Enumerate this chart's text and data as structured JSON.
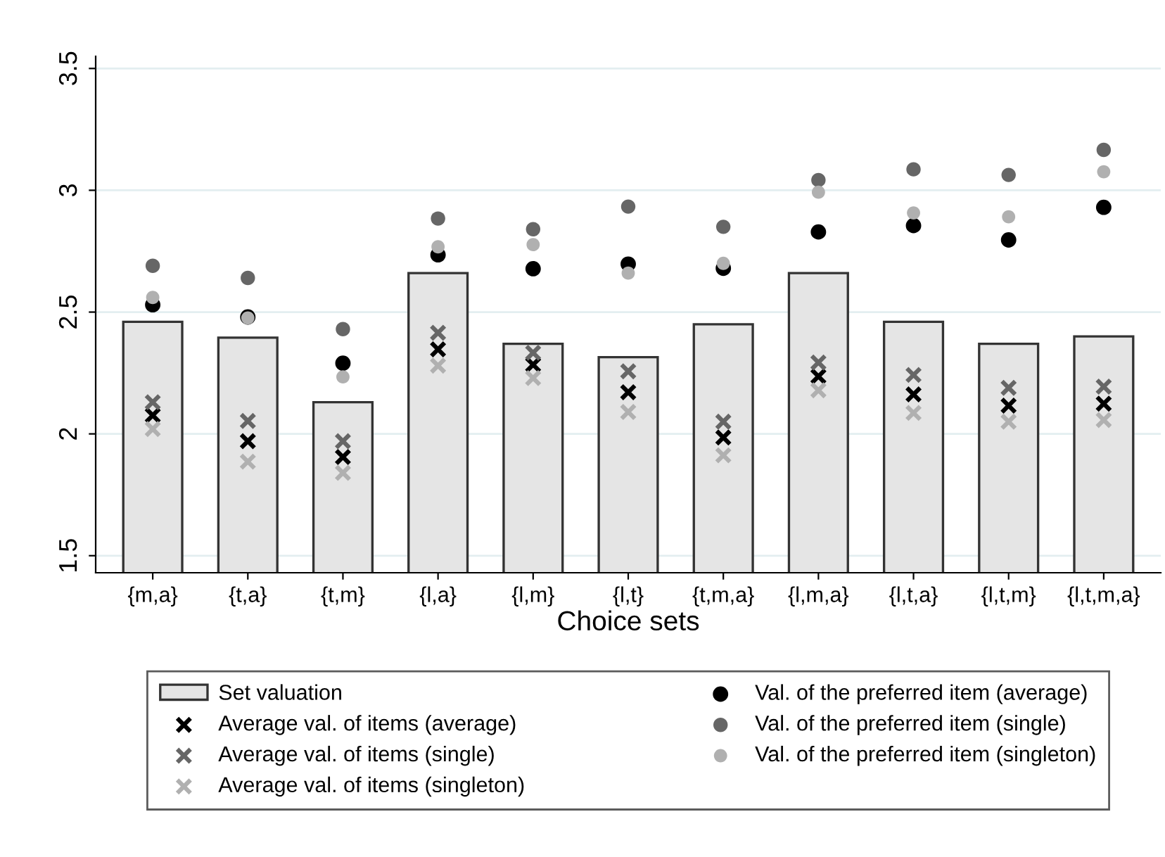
{
  "chart_data": {
    "type": "bar",
    "xlabel": "Choice sets",
    "categories": [
      "{m,a}",
      "{t,a}",
      "{t,m}",
      "{l,a}",
      "{l,m}",
      "{l,t}",
      "{t,m,a}",
      "{l,m,a}",
      "{l,t,a}",
      "{l,t,m}",
      "{l,t,m,a}"
    ],
    "ylim": [
      1.43,
      3.55
    ],
    "yticks": [
      1.5,
      2,
      2.5,
      3,
      3.5
    ],
    "grid": "y",
    "legend": "bottom",
    "series": [
      {
        "name": "Set valuation",
        "type": "bar",
        "color": "#e5e5e5",
        "values": [
          2.46,
          2.395,
          2.13,
          2.66,
          2.37,
          2.315,
          2.45,
          2.66,
          2.46,
          2.37,
          2.4
        ]
      },
      {
        "name": "Average val. of items (average)",
        "type": "scatter",
        "marker": "cross",
        "color": "#000000",
        "values": [
          2.076,
          1.97,
          1.905,
          2.347,
          2.284,
          2.171,
          1.985,
          2.236,
          2.162,
          2.116,
          2.124
        ]
      },
      {
        "name": "Average val. of items (single)",
        "type": "scatter",
        "marker": "cross",
        "color": "#666666",
        "values": [
          2.13,
          2.053,
          1.97,
          2.415,
          2.333,
          2.257,
          2.05,
          2.293,
          2.242,
          2.189,
          2.194
        ]
      },
      {
        "name": "Average val. of items (singleton)",
        "type": "scatter",
        "marker": "cross",
        "color": "#b0b0b0",
        "values": [
          2.02,
          1.886,
          1.84,
          2.28,
          2.229,
          2.09,
          1.912,
          2.179,
          2.086,
          2.05,
          2.057
        ]
      },
      {
        "name": "Val. of the preferred item (average)",
        "type": "scatter",
        "marker": "circle",
        "color": "#000000",
        "values": [
          2.53,
          2.48,
          2.29,
          2.735,
          2.678,
          2.697,
          2.68,
          2.829,
          2.855,
          2.796,
          2.93
        ]
      },
      {
        "name": "Val. of the preferred item (single)",
        "type": "scatter",
        "marker": "circle",
        "color": "#666666",
        "values": [
          2.69,
          2.64,
          2.43,
          2.884,
          2.84,
          2.933,
          2.85,
          3.042,
          3.086,
          3.063,
          3.166
        ]
      },
      {
        "name": "Val. of the preferred item (singleton)",
        "type": "scatter",
        "marker": "circle",
        "color": "#b0b0b0",
        "values": [
          2.56,
          2.476,
          2.234,
          2.768,
          2.777,
          2.66,
          2.7,
          2.992,
          2.907,
          2.891,
          3.076
        ]
      }
    ]
  }
}
